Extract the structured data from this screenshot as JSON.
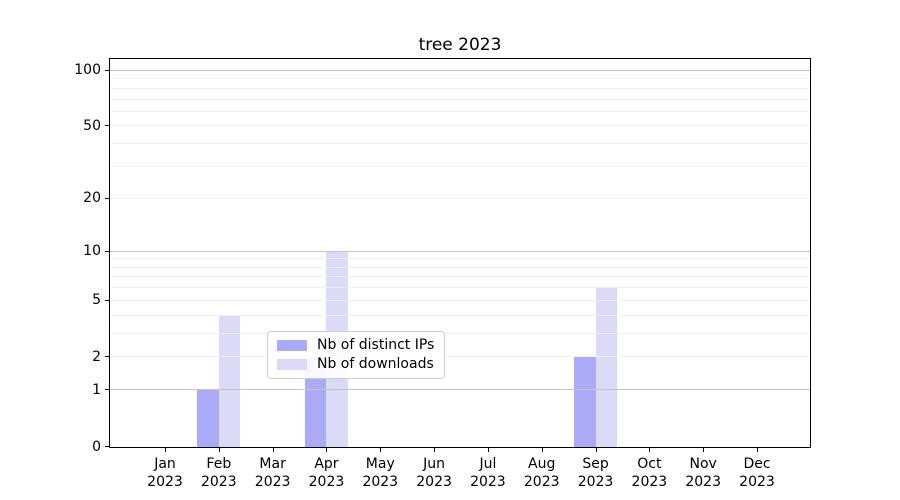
{
  "figure": {
    "background": "#ffffff"
  },
  "chart_data": {
    "type": "bar",
    "title": "tree 2023",
    "xlabel": "",
    "ylabel": "",
    "categories": [
      "Jan",
      "Feb",
      "Mar",
      "Apr",
      "May",
      "Jun",
      "Jul",
      "Aug",
      "Sep",
      "Oct",
      "Nov",
      "Dec"
    ],
    "category_year": "2023",
    "series": [
      {
        "name": "Nb of distinct IPs",
        "color": "#aaaaf8",
        "values": [
          0,
          1,
          0,
          2,
          0,
          0,
          0,
          0,
          2,
          0,
          0,
          0
        ]
      },
      {
        "name": "Nb of downloads",
        "color": "#dbdbf8",
        "values": [
          0,
          4,
          0,
          10,
          0,
          0,
          0,
          0,
          6,
          0,
          0,
          0
        ]
      }
    ],
    "yscale": "log1p",
    "ylim": [
      0,
      110
    ],
    "yticks": [
      0,
      1,
      2,
      5,
      10,
      20,
      50,
      100
    ],
    "grid": {
      "major_at": [
        1,
        10,
        100
      ],
      "minor_at": [
        2,
        3,
        4,
        5,
        6,
        7,
        8,
        9,
        20,
        30,
        40,
        50,
        60,
        70,
        80,
        90
      ],
      "major_color": "#c6c6c6",
      "minor_color": "#efefef"
    },
    "legend": {
      "position": "lower center-left",
      "entries": [
        "Nb of distinct IPs",
        "Nb of downloads"
      ]
    },
    "colors": {
      "axis": "#000000",
      "tick_label": "#000000",
      "legend_border": "#cccccc"
    }
  }
}
